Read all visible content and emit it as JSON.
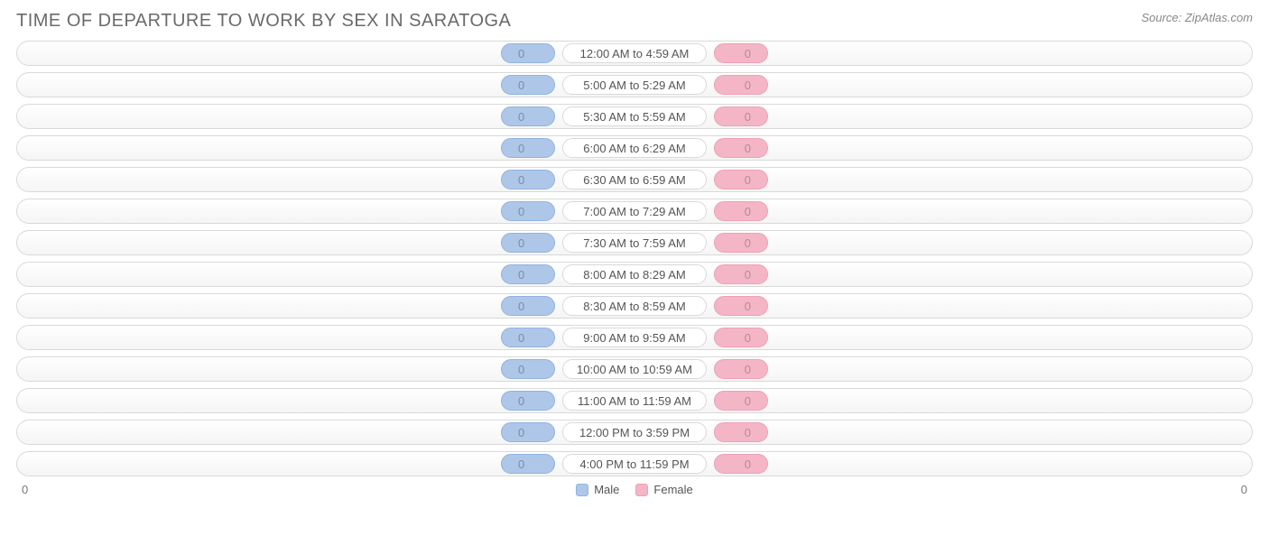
{
  "header": {
    "title": "TIME OF DEPARTURE TO WORK BY SEX IN SARATOGA",
    "source": "Source: ZipAtlas.com"
  },
  "chart": {
    "type": "diverging-bar",
    "background_color": "#ffffff",
    "row_border_color": "#d9d9d9",
    "row_bg_top": "#ffffff",
    "row_bg_bottom": "#f5f5f5",
    "axis_min_label": "0",
    "axis_max_label": "0",
    "pill_min_width": 60,
    "series": [
      {
        "key": "male",
        "label": "Male",
        "fill": "#aec7e8",
        "border": "#8fb4df",
        "text": "#7a8fa6"
      },
      {
        "key": "female",
        "label": "Female",
        "fill": "#f4b6c7",
        "border": "#eea0b6",
        "text": "#b6889a"
      }
    ],
    "categories": [
      {
        "label": "12:00 AM to 4:59 AM",
        "male": 0,
        "female": 0
      },
      {
        "label": "5:00 AM to 5:29 AM",
        "male": 0,
        "female": 0
      },
      {
        "label": "5:30 AM to 5:59 AM",
        "male": 0,
        "female": 0
      },
      {
        "label": "6:00 AM to 6:29 AM",
        "male": 0,
        "female": 0
      },
      {
        "label": "6:30 AM to 6:59 AM",
        "male": 0,
        "female": 0
      },
      {
        "label": "7:00 AM to 7:29 AM",
        "male": 0,
        "female": 0
      },
      {
        "label": "7:30 AM to 7:59 AM",
        "male": 0,
        "female": 0
      },
      {
        "label": "8:00 AM to 8:29 AM",
        "male": 0,
        "female": 0
      },
      {
        "label": "8:30 AM to 8:59 AM",
        "male": 0,
        "female": 0
      },
      {
        "label": "9:00 AM to 9:59 AM",
        "male": 0,
        "female": 0
      },
      {
        "label": "10:00 AM to 10:59 AM",
        "male": 0,
        "female": 0
      },
      {
        "label": "11:00 AM to 11:59 AM",
        "male": 0,
        "female": 0
      },
      {
        "label": "12:00 PM to 3:59 PM",
        "male": 0,
        "female": 0
      },
      {
        "label": "4:00 PM to 11:59 PM",
        "male": 0,
        "female": 0
      }
    ]
  }
}
